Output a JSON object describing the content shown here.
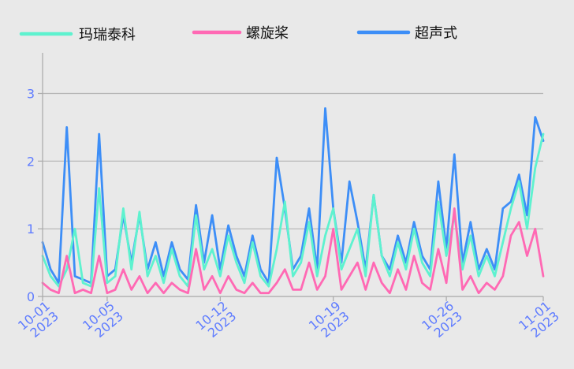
{
  "chart_data": {
    "type": "line",
    "legend_position": "top",
    "grid": true,
    "x_start": "2023-10-01",
    "x_end": "2023-11-01",
    "ylim": [
      0,
      3.6
    ],
    "y_ticks": [
      0,
      1,
      2,
      3
    ],
    "x_ticks": [
      {
        "date": "2023-10-01",
        "line1": "10-01",
        "line2": "2023"
      },
      {
        "date": "2023-10-05",
        "line1": "10-05",
        "line2": "2023"
      },
      {
        "date": "2023-10-12",
        "line1": "10-12",
        "line2": "2023"
      },
      {
        "date": "2023-10-19",
        "line1": "10-19",
        "line2": "2023"
      },
      {
        "date": "2023-10-26",
        "line1": "10-26",
        "line2": "2023"
      },
      {
        "date": "2023-11-01",
        "line1": "11-01",
        "line2": "2023"
      }
    ],
    "series": [
      {
        "name": "玛瑞泰科",
        "color": "#5ef2cf",
        "points": [
          [
            "2023-10-01T00:00",
            0.6
          ],
          [
            "2023-10-01T12:00",
            0.3
          ],
          [
            "2023-10-02T00:00",
            0.15
          ],
          [
            "2023-10-02T12:00",
            0.4
          ],
          [
            "2023-10-03T00:00",
            1.0
          ],
          [
            "2023-10-03T12:00",
            0.2
          ],
          [
            "2023-10-04T00:00",
            0.15
          ],
          [
            "2023-10-04T12:00",
            1.6
          ],
          [
            "2023-10-05T00:00",
            0.2
          ],
          [
            "2023-10-05T12:00",
            0.3
          ],
          [
            "2023-10-06T00:00",
            1.3
          ],
          [
            "2023-10-06T12:00",
            0.4
          ],
          [
            "2023-10-07T00:00",
            1.25
          ],
          [
            "2023-10-07T12:00",
            0.3
          ],
          [
            "2023-10-08T00:00",
            0.6
          ],
          [
            "2023-10-08T12:00",
            0.2
          ],
          [
            "2023-10-09T00:00",
            0.7
          ],
          [
            "2023-10-09T12:00",
            0.3
          ],
          [
            "2023-10-10T00:00",
            0.15
          ],
          [
            "2023-10-10T12:00",
            1.2
          ],
          [
            "2023-10-11T00:00",
            0.4
          ],
          [
            "2023-10-11T12:00",
            0.7
          ],
          [
            "2023-10-12T00:00",
            0.3
          ],
          [
            "2023-10-12T12:00",
            0.9
          ],
          [
            "2023-10-13T00:00",
            0.5
          ],
          [
            "2023-10-13T12:00",
            0.2
          ],
          [
            "2023-10-14T00:00",
            0.8
          ],
          [
            "2023-10-14T12:00",
            0.3
          ],
          [
            "2023-10-15T00:00",
            0.15
          ],
          [
            "2023-10-15T12:00",
            0.7
          ],
          [
            "2023-10-16T00:00",
            1.4
          ],
          [
            "2023-10-16T12:00",
            0.3
          ],
          [
            "2023-10-17T00:00",
            0.5
          ],
          [
            "2023-10-17T12:00",
            1.1
          ],
          [
            "2023-10-18T00:00",
            0.3
          ],
          [
            "2023-10-18T12:00",
            0.9
          ],
          [
            "2023-10-19T00:00",
            1.3
          ],
          [
            "2023-10-19T12:00",
            0.4
          ],
          [
            "2023-10-20T00:00",
            0.7
          ],
          [
            "2023-10-20T12:00",
            1.0
          ],
          [
            "2023-10-21T00:00",
            0.3
          ],
          [
            "2023-10-21T12:00",
            1.5
          ],
          [
            "2023-10-22T00:00",
            0.6
          ],
          [
            "2023-10-22T12:00",
            0.3
          ],
          [
            "2023-10-23T00:00",
            0.8
          ],
          [
            "2023-10-23T12:00",
            0.4
          ],
          [
            "2023-10-24T00:00",
            1.0
          ],
          [
            "2023-10-24T12:00",
            0.5
          ],
          [
            "2023-10-25T00:00",
            0.3
          ],
          [
            "2023-10-25T12:00",
            1.4
          ],
          [
            "2023-10-26T00:00",
            0.6
          ],
          [
            "2023-10-26T12:00",
            1.2
          ],
          [
            "2023-10-27T00:00",
            0.4
          ],
          [
            "2023-10-27T12:00",
            0.9
          ],
          [
            "2023-10-28T00:00",
            0.3
          ],
          [
            "2023-10-28T12:00",
            0.6
          ],
          [
            "2023-10-29T00:00",
            0.3
          ],
          [
            "2023-10-29T12:00",
            0.8
          ],
          [
            "2023-10-30T00:00",
            1.3
          ],
          [
            "2023-10-30T12:00",
            1.7
          ],
          [
            "2023-10-31T00:00",
            1.0
          ],
          [
            "2023-10-31T12:00",
            1.9
          ],
          [
            "2023-11-01T00:00",
            2.4
          ]
        ]
      },
      {
        "name": "螺旋桨",
        "color": "#ff69b4",
        "points": [
          [
            "2023-10-01T00:00",
            0.2
          ],
          [
            "2023-10-01T12:00",
            0.1
          ],
          [
            "2023-10-02T00:00",
            0.05
          ],
          [
            "2023-10-02T12:00",
            0.6
          ],
          [
            "2023-10-03T00:00",
            0.05
          ],
          [
            "2023-10-03T12:00",
            0.1
          ],
          [
            "2023-10-04T00:00",
            0.05
          ],
          [
            "2023-10-04T12:00",
            0.6
          ],
          [
            "2023-10-05T00:00",
            0.05
          ],
          [
            "2023-10-05T12:00",
            0.1
          ],
          [
            "2023-10-06T00:00",
            0.4
          ],
          [
            "2023-10-06T12:00",
            0.1
          ],
          [
            "2023-10-07T00:00",
            0.3
          ],
          [
            "2023-10-07T12:00",
            0.05
          ],
          [
            "2023-10-08T00:00",
            0.2
          ],
          [
            "2023-10-08T12:00",
            0.05
          ],
          [
            "2023-10-09T00:00",
            0.2
          ],
          [
            "2023-10-09T12:00",
            0.1
          ],
          [
            "2023-10-10T00:00",
            0.05
          ],
          [
            "2023-10-10T12:00",
            0.7
          ],
          [
            "2023-10-11T00:00",
            0.1
          ],
          [
            "2023-10-11T12:00",
            0.3
          ],
          [
            "2023-10-12T00:00",
            0.05
          ],
          [
            "2023-10-12T12:00",
            0.3
          ],
          [
            "2023-10-13T00:00",
            0.1
          ],
          [
            "2023-10-13T12:00",
            0.05
          ],
          [
            "2023-10-14T00:00",
            0.2
          ],
          [
            "2023-10-14T12:00",
            0.05
          ],
          [
            "2023-10-15T00:00",
            0.05
          ],
          [
            "2023-10-15T12:00",
            0.2
          ],
          [
            "2023-10-16T00:00",
            0.4
          ],
          [
            "2023-10-16T12:00",
            0.1
          ],
          [
            "2023-10-17T00:00",
            0.1
          ],
          [
            "2023-10-17T12:00",
            0.5
          ],
          [
            "2023-10-18T00:00",
            0.1
          ],
          [
            "2023-10-18T12:00",
            0.3
          ],
          [
            "2023-10-19T00:00",
            1.0
          ],
          [
            "2023-10-19T12:00",
            0.1
          ],
          [
            "2023-10-20T00:00",
            0.3
          ],
          [
            "2023-10-20T12:00",
            0.5
          ],
          [
            "2023-10-21T00:00",
            0.1
          ],
          [
            "2023-10-21T12:00",
            0.5
          ],
          [
            "2023-10-22T00:00",
            0.2
          ],
          [
            "2023-10-22T12:00",
            0.05
          ],
          [
            "2023-10-23T00:00",
            0.4
          ],
          [
            "2023-10-23T12:00",
            0.1
          ],
          [
            "2023-10-24T00:00",
            0.6
          ],
          [
            "2023-10-24T12:00",
            0.2
          ],
          [
            "2023-10-25T00:00",
            0.1
          ],
          [
            "2023-10-25T12:00",
            0.7
          ],
          [
            "2023-10-26T00:00",
            0.2
          ],
          [
            "2023-10-26T12:00",
            1.3
          ],
          [
            "2023-10-27T00:00",
            0.1
          ],
          [
            "2023-10-27T12:00",
            0.3
          ],
          [
            "2023-10-28T00:00",
            0.05
          ],
          [
            "2023-10-28T12:00",
            0.2
          ],
          [
            "2023-10-29T00:00",
            0.1
          ],
          [
            "2023-10-29T12:00",
            0.3
          ],
          [
            "2023-10-30T00:00",
            0.9
          ],
          [
            "2023-10-30T12:00",
            1.1
          ],
          [
            "2023-10-31T00:00",
            0.6
          ],
          [
            "2023-10-31T12:00",
            1.0
          ],
          [
            "2023-11-01T00:00",
            0.3
          ]
        ]
      },
      {
        "name": "超声式",
        "color": "#3d8ef7",
        "points": [
          [
            "2023-10-01T00:00",
            0.8
          ],
          [
            "2023-10-01T12:00",
            0.4
          ],
          [
            "2023-10-02T00:00",
            0.2
          ],
          [
            "2023-10-02T12:00",
            2.5
          ],
          [
            "2023-10-03T00:00",
            0.3
          ],
          [
            "2023-10-03T12:00",
            0.25
          ],
          [
            "2023-10-04T00:00",
            0.2
          ],
          [
            "2023-10-04T12:00",
            2.4
          ],
          [
            "2023-10-05T00:00",
            0.3
          ],
          [
            "2023-10-05T12:00",
            0.4
          ],
          [
            "2023-10-06T00:00",
            1.2
          ],
          [
            "2023-10-06T12:00",
            0.5
          ],
          [
            "2023-10-07T00:00",
            1.2
          ],
          [
            "2023-10-07T12:00",
            0.4
          ],
          [
            "2023-10-08T00:00",
            0.8
          ],
          [
            "2023-10-08T12:00",
            0.3
          ],
          [
            "2023-10-09T00:00",
            0.8
          ],
          [
            "2023-10-09T12:00",
            0.4
          ],
          [
            "2023-10-10T00:00",
            0.25
          ],
          [
            "2023-10-10T12:00",
            1.35
          ],
          [
            "2023-10-11T00:00",
            0.5
          ],
          [
            "2023-10-11T12:00",
            1.2
          ],
          [
            "2023-10-12T00:00",
            0.4
          ],
          [
            "2023-10-12T12:00",
            1.05
          ],
          [
            "2023-10-13T00:00",
            0.6
          ],
          [
            "2023-10-13T12:00",
            0.3
          ],
          [
            "2023-10-14T00:00",
            0.9
          ],
          [
            "2023-10-14T12:00",
            0.4
          ],
          [
            "2023-10-15T00:00",
            0.2
          ],
          [
            "2023-10-15T12:00",
            2.05
          ],
          [
            "2023-10-16T00:00",
            1.3
          ],
          [
            "2023-10-16T12:00",
            0.4
          ],
          [
            "2023-10-17T00:00",
            0.6
          ],
          [
            "2023-10-17T12:00",
            1.3
          ],
          [
            "2023-10-18T00:00",
            0.4
          ],
          [
            "2023-10-18T12:00",
            2.78
          ],
          [
            "2023-10-19T00:00",
            1.3
          ],
          [
            "2023-10-19T12:00",
            0.5
          ],
          [
            "2023-10-20T00:00",
            1.7
          ],
          [
            "2023-10-20T12:00",
            1.1
          ],
          [
            "2023-10-21T00:00",
            0.4
          ],
          [
            "2023-10-21T12:00",
            1.5
          ],
          [
            "2023-10-22T00:00",
            0.6
          ],
          [
            "2023-10-22T12:00",
            0.4
          ],
          [
            "2023-10-23T00:00",
            0.9
          ],
          [
            "2023-10-23T12:00",
            0.5
          ],
          [
            "2023-10-24T00:00",
            1.1
          ],
          [
            "2023-10-24T12:00",
            0.6
          ],
          [
            "2023-10-25T00:00",
            0.4
          ],
          [
            "2023-10-25T12:00",
            1.7
          ],
          [
            "2023-10-26T00:00",
            0.7
          ],
          [
            "2023-10-26T12:00",
            2.1
          ],
          [
            "2023-10-27T00:00",
            0.5
          ],
          [
            "2023-10-27T12:00",
            1.1
          ],
          [
            "2023-10-28T00:00",
            0.4
          ],
          [
            "2023-10-28T12:00",
            0.7
          ],
          [
            "2023-10-29T00:00",
            0.4
          ],
          [
            "2023-10-29T12:00",
            1.3
          ],
          [
            "2023-10-30T00:00",
            1.4
          ],
          [
            "2023-10-30T12:00",
            1.8
          ],
          [
            "2023-10-31T00:00",
            1.2
          ],
          [
            "2023-10-31T12:00",
            2.65
          ],
          [
            "2023-11-01T00:00",
            2.3
          ]
        ]
      }
    ]
  }
}
